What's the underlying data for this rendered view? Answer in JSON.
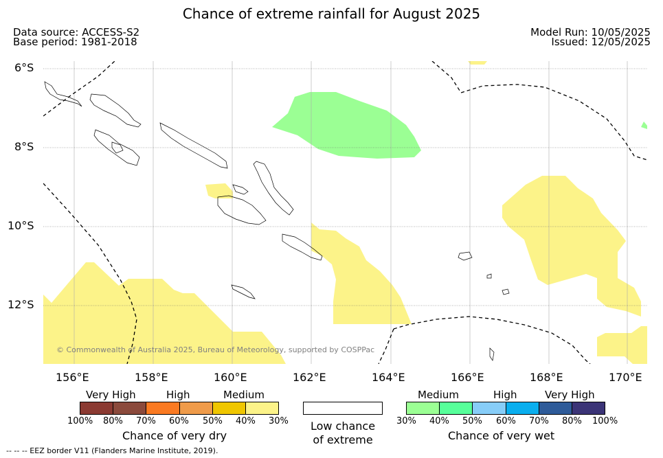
{
  "title": "Chance of extreme rainfall for August 2025",
  "data_source": "Data source: ACCESS-S2",
  "base_period": "Base period: 1981-2018",
  "model_run": "Model Run: 10/05/2025",
  "issued": "Issued: 12/05/2025",
  "map": {
    "lat_labels": [
      "6°S",
      "8°S",
      "10°S",
      "12°S"
    ],
    "lon_labels": [
      "156°E",
      "158°E",
      "160°E",
      "162°E",
      "164°E",
      "166°E",
      "168°E",
      "170°E"
    ],
    "copyright": "© Commonwealth of Australia 2025, Bureau of Meteorology, supported by COSPPac"
  },
  "legend_dry": {
    "headings": [
      "Very High",
      "High",
      "Medium"
    ],
    "ticks": [
      "100%",
      "80%",
      "70%",
      "60%",
      "50%",
      "40%",
      "30%"
    ],
    "title": "Chance of very dry",
    "colors": [
      "#8b3a32",
      "#8b4a3c",
      "#fa7a22",
      "#ef9b4a",
      "#efc600",
      "#fcf389"
    ]
  },
  "legend_low": {
    "line1": "Low chance",
    "line2": "of extreme"
  },
  "legend_wet": {
    "headings": [
      "Medium",
      "High",
      "Very High"
    ],
    "ticks": [
      "30%",
      "40%",
      "50%",
      "60%",
      "70%",
      "80%",
      "100%"
    ],
    "title": "Chance of very wet",
    "colors": [
      "#9bff94",
      "#57ff9a",
      "#87cdf8",
      "#0aaeee",
      "#2e5b99",
      "#3b3477"
    ]
  },
  "footer": "--  --  -- EEZ border V11 (Flanders Marine Institute, 2019)."
}
